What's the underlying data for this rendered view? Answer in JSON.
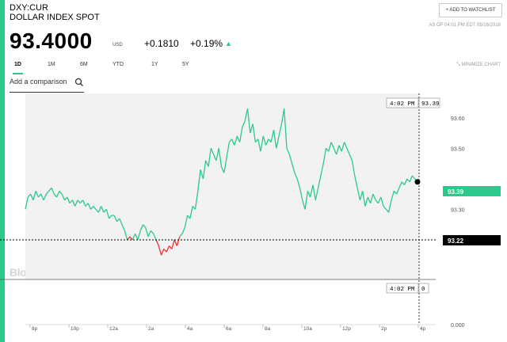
{
  "header": {
    "ticker": "DXY:CUR",
    "name": "DOLLAR INDEX SPOT",
    "price": "93.4000",
    "currency": "USD",
    "change": "+0.1810",
    "change_pct": "+0.19%",
    "change_direction_icon": "triangle-up-icon",
    "watchlist_label": "+ ADD TO WATCHLIST",
    "as_of": "AS OF 04:01 PM EDT 05/16/2018"
  },
  "ranges": {
    "items": [
      "1D",
      "1M",
      "6M",
      "YTD",
      "1Y",
      "5Y"
    ],
    "active": "1D",
    "minimize_label": "MINIMIZE CHART",
    "minimize_icon": "collapse-arrows-icon"
  },
  "compare": {
    "placeholder": "Add a comparison",
    "icon": "search-icon"
  },
  "brand": "BloombergMarkets",
  "colors": {
    "accent": "#2bc98a",
    "up": "#2bc98a",
    "down": "#e8342c",
    "area": "#f2f2f2"
  },
  "chart_data": {
    "type": "line",
    "y_ticks": [
      "93.60",
      "93.50",
      "93.30",
      "93.20"
    ],
    "y_range": [
      93.07,
      93.68
    ],
    "x_ticks": [
      "8p",
      "10p",
      "12a",
      "2a",
      "4a",
      "6a",
      "8a",
      "10a",
      "12p",
      "2p",
      "4p"
    ],
    "crosshair_time": "4:02 PM",
    "crosshair_value": "93.39",
    "last_value_label": "93.39",
    "previous_close_label": "93.22",
    "previous_close": 93.22,
    "volume_axis_label": "0.000",
    "volume_time": "4:02 PM",
    "volume_value": "0",
    "series": [
      {
        "values": [
          93.3,
          93.34,
          93.35,
          93.33,
          93.36,
          93.34,
          93.35,
          93.33,
          93.35,
          93.36,
          93.37,
          93.35,
          93.34,
          93.36,
          93.35,
          93.33,
          93.34,
          93.32,
          93.33,
          93.31,
          93.33,
          93.32,
          93.33,
          93.31,
          93.32,
          93.3,
          93.31,
          93.3,
          93.29,
          93.31,
          93.29,
          93.3,
          93.27,
          93.28,
          93.28,
          93.26,
          93.27,
          93.25,
          93.23,
          93.2,
          93.21,
          93.2,
          93.22,
          93.2,
          93.23,
          93.25,
          93.24,
          93.21,
          93.23,
          93.22,
          93.2,
          93.18,
          93.15,
          93.17,
          93.16,
          93.18,
          93.17,
          93.2,
          93.18,
          93.21,
          93.22,
          93.24,
          93.28,
          93.27,
          93.31,
          93.3,
          93.36,
          93.43,
          93.4,
          93.46,
          93.44,
          93.5,
          93.48,
          93.46,
          93.5,
          93.44,
          93.42,
          93.47,
          93.52,
          93.53,
          93.51,
          93.54,
          93.52,
          93.57,
          93.59,
          93.63,
          93.55,
          93.58,
          93.52,
          93.53,
          93.49,
          93.54,
          93.51,
          93.53,
          93.52,
          93.56,
          93.5,
          93.54,
          93.58,
          93.63,
          93.5,
          93.48,
          93.45,
          93.42,
          93.4,
          93.37,
          93.33,
          93.3,
          93.36,
          93.34,
          93.38,
          93.33,
          93.37,
          93.41,
          93.45,
          93.5,
          93.49,
          93.52,
          93.5,
          93.48,
          93.51,
          93.49,
          93.52,
          93.5,
          93.48,
          93.46,
          93.41,
          93.37,
          93.33,
          93.36,
          93.31,
          93.34,
          93.32,
          93.35,
          93.33,
          93.32,
          93.34,
          93.31,
          93.3,
          93.29,
          93.33,
          93.36,
          93.35,
          93.37,
          93.39,
          93.38,
          93.4,
          93.39,
          93.41,
          93.4,
          93.39
        ]
      }
    ]
  }
}
